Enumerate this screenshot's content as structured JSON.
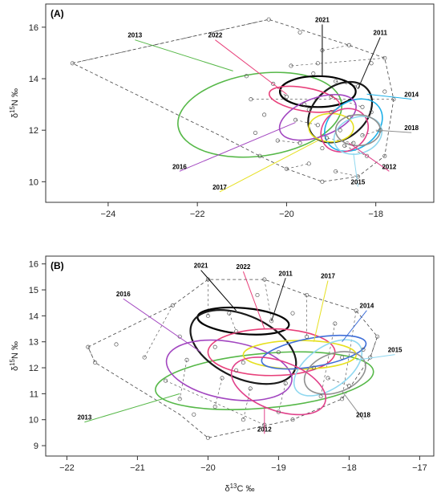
{
  "colors": {
    "2011": "#5a5a5a",
    "2012": "#e0408a",
    "2013": "#56b848",
    "2014": "#1eb0e8",
    "2015": "#90d8f0",
    "2016": "#a246c0",
    "2017": "#e6e020",
    "2018": "#909090",
    "2021": "#000000",
    "2022": "#e8407a",
    "2021b": "#1a1a1a",
    "2014b": "#3f6fd8",
    "hull": "#444444"
  },
  "chart_data": [
    {
      "type": "scatter",
      "panel_label": "(A)",
      "xlabel": "",
      "ylabel": "δ15N ‰",
      "xlim": [
        -25.4,
        -16.7
      ],
      "ylim": [
        9.2,
        16.9
      ],
      "xticks": [
        -24,
        -22,
        -20,
        -18
      ],
      "yticks": [
        10,
        12,
        14,
        16
      ],
      "ellipses": [
        {
          "year": "2013",
          "cx": -20.6,
          "cy": 12.6,
          "rx": 1.85,
          "ry": 1.6,
          "angle": 8,
          "color": "2013"
        },
        {
          "year": "2021",
          "cx": -19.3,
          "cy": 13.5,
          "rx": 0.85,
          "ry": 0.6,
          "angle": 0,
          "color": "2021"
        },
        {
          "year": "2011",
          "cx": -18.8,
          "cy": 12.7,
          "rx": 0.8,
          "ry": 1.0,
          "angle": 40,
          "color": "2021b"
        },
        {
          "year": "2022",
          "cx": -19.6,
          "cy": 13.2,
          "rx": 0.8,
          "ry": 0.45,
          "angle": -10,
          "color": "2022"
        },
        {
          "year": "2014",
          "cx": -18.5,
          "cy": 12.2,
          "rx": 0.7,
          "ry": 0.9,
          "angle": 35,
          "color": "2014"
        },
        {
          "year": "2016",
          "cx": -19.3,
          "cy": 12.5,
          "rx": 0.9,
          "ry": 0.75,
          "angle": 20,
          "color": "2016"
        },
        {
          "year": "2017",
          "cx": -19.0,
          "cy": 12.1,
          "rx": 0.5,
          "ry": 0.55,
          "angle": 0,
          "color": "2017"
        },
        {
          "year": "2012",
          "cx": -18.7,
          "cy": 12.0,
          "rx": 0.55,
          "ry": 0.8,
          "angle": 30,
          "color": "2012"
        },
        {
          "year": "2015",
          "cx": -18.4,
          "cy": 11.8,
          "rx": 0.55,
          "ry": 0.7,
          "angle": 20,
          "color": "2015"
        },
        {
          "year": "2018",
          "cx": -18.4,
          "cy": 12.0,
          "rx": 0.5,
          "ry": 0.6,
          "angle": 0,
          "color": "2018"
        }
      ],
      "hull_points": [
        [
          -24.8,
          14.6
        ],
        [
          -20.4,
          16.3
        ],
        [
          -18.6,
          15.3
        ],
        [
          -17.8,
          14.8
        ],
        [
          -17.6,
          13.2
        ],
        [
          -17.8,
          11.0
        ],
        [
          -18.4,
          10.2
        ],
        [
          -19.2,
          10.0
        ],
        [
          -20.0,
          10.5
        ],
        [
          -20.6,
          11.0
        ],
        [
          -21.5,
          11.8
        ],
        [
          -24.8,
          14.6
        ]
      ],
      "points": [
        [
          -24.8,
          14.6
        ],
        [
          -20.4,
          16.3
        ],
        [
          -19.7,
          15.8
        ],
        [
          -19.2,
          15.1
        ],
        [
          -18.6,
          15.3
        ],
        [
          -18.1,
          14.6
        ],
        [
          -17.8,
          14.8
        ],
        [
          -19.9,
          14.5
        ],
        [
          -19.4,
          14.2
        ],
        [
          -18.9,
          13.9
        ],
        [
          -18.4,
          13.7
        ],
        [
          -17.8,
          13.5
        ],
        [
          -20.3,
          13.8
        ],
        [
          -20.0,
          13.3
        ],
        [
          -19.6,
          13.0
        ],
        [
          -19.0,
          12.7
        ],
        [
          -18.6,
          12.5
        ],
        [
          -18.1,
          12.7
        ],
        [
          -17.6,
          13.2
        ],
        [
          -20.8,
          13.2
        ],
        [
          -20.5,
          12.6
        ],
        [
          -19.8,
          12.4
        ],
        [
          -19.3,
          12.2
        ],
        [
          -18.8,
          12.0
        ],
        [
          -18.3,
          11.8
        ],
        [
          -17.9,
          12.0
        ],
        [
          -20.7,
          11.9
        ],
        [
          -20.2,
          11.6
        ],
        [
          -19.7,
          11.5
        ],
        [
          -19.2,
          11.3
        ],
        [
          -18.7,
          11.4
        ],
        [
          -18.2,
          11.0
        ],
        [
          -17.8,
          11.0
        ],
        [
          -20.0,
          10.5
        ],
        [
          -19.5,
          10.7
        ],
        [
          -19.2,
          10.0
        ],
        [
          -18.9,
          10.4
        ],
        [
          -18.4,
          10.2
        ],
        [
          -20.6,
          11.0
        ],
        [
          -19.0,
          13.3
        ],
        [
          -18.3,
          12.9
        ],
        [
          -19.5,
          12.8
        ],
        [
          -18.5,
          11.5
        ],
        [
          -19.1,
          11.7
        ],
        [
          -20.9,
          14.1
        ],
        [
          -19.3,
          14.6
        ]
      ],
      "annotations": [
        {
          "text": "2013",
          "tx": -23.4,
          "ty": 15.6,
          "lx": -21.2,
          "ly": 14.3,
          "color": "2013"
        },
        {
          "text": "2022",
          "tx": -21.6,
          "ty": 15.6,
          "lx": -20.0,
          "ly": 13.4,
          "color": "2022"
        },
        {
          "text": "2021",
          "tx": -19.2,
          "ty": 16.2,
          "lx": -19.2,
          "ly": 14.1,
          "color": "2021"
        },
        {
          "text": "2011",
          "tx": -17.9,
          "ty": 15.7,
          "lx": -18.4,
          "ly": 13.6,
          "color": "2021b"
        },
        {
          "text": "2014",
          "tx": -17.2,
          "ty": 13.3,
          "lx": -18.2,
          "ly": 13.4,
          "color": "2014"
        },
        {
          "text": "2018",
          "tx": -17.2,
          "ty": 12.0,
          "lx": -18.0,
          "ly": 12.0,
          "color": "2018"
        },
        {
          "text": "2012",
          "tx": -17.7,
          "ty": 10.5,
          "lx": -18.6,
          "ly": 11.5,
          "color": "2012"
        },
        {
          "text": "2015",
          "tx": -18.4,
          "ty": 9.9,
          "lx": -18.5,
          "ly": 11.1,
          "color": "2015"
        },
        {
          "text": "2016",
          "tx": -22.4,
          "ty": 10.5,
          "lx": -19.8,
          "ly": 12.3,
          "color": "2016"
        },
        {
          "text": "2017",
          "tx": -21.5,
          "ty": 9.7,
          "lx": -19.3,
          "ly": 11.6,
          "color": "2017"
        }
      ]
    },
    {
      "type": "scatter",
      "panel_label": "(B)",
      "xlabel": "δ13C ‰",
      "ylabel": "δ15N ‰",
      "xlim": [
        -22.3,
        -16.8
      ],
      "ylim": [
        8.6,
        16.3
      ],
      "xticks": [
        -22,
        -21,
        -20,
        -19,
        -18,
        -17
      ],
      "yticks": [
        9,
        10,
        11,
        12,
        13,
        14,
        15,
        16
      ],
      "ellipses": [
        {
          "year": "2013",
          "cx": -19.2,
          "cy": 11.5,
          "rx": 1.55,
          "ry": 1.05,
          "angle": 5,
          "color": "2013"
        },
        {
          "year": "2021",
          "cx": -19.5,
          "cy": 13.8,
          "rx": 0.65,
          "ry": 0.5,
          "angle": -5,
          "color": "2021"
        },
        {
          "year": "2011",
          "cx": -19.5,
          "cy": 12.8,
          "rx": 0.8,
          "ry": 1.2,
          "angle": -25,
          "color": "2021b"
        },
        {
          "year": "2022",
          "cx": -19.1,
          "cy": 12.6,
          "rx": 0.9,
          "ry": 0.9,
          "angle": 0,
          "color": "2022"
        },
        {
          "year": "2016",
          "cx": -19.7,
          "cy": 11.9,
          "rx": 0.9,
          "ry": 1.1,
          "angle": -10,
          "color": "2016"
        },
        {
          "year": "2017",
          "cx": -18.7,
          "cy": 12.5,
          "rx": 0.8,
          "ry": 0.55,
          "angle": 0,
          "color": "2017"
        },
        {
          "year": "2014",
          "cx": -18.5,
          "cy": 12.6,
          "rx": 0.75,
          "ry": 0.55,
          "angle": 10,
          "color": "2014b"
        },
        {
          "year": "2015",
          "cx": -18.3,
          "cy": 12.0,
          "rx": 0.55,
          "ry": 0.8,
          "angle": 35,
          "color": "2015"
        },
        {
          "year": "2018",
          "cx": -18.2,
          "cy": 11.8,
          "rx": 0.45,
          "ry": 0.75,
          "angle": 20,
          "color": "2018"
        },
        {
          "year": "2012",
          "cx": -19.0,
          "cy": 11.3,
          "rx": 0.7,
          "ry": 0.95,
          "angle": -20,
          "color": "2012"
        }
      ],
      "hull_points": [
        [
          -21.7,
          12.8
        ],
        [
          -20.5,
          14.4
        ],
        [
          -20.0,
          15.4
        ],
        [
          -19.2,
          15.4
        ],
        [
          -18.6,
          14.8
        ],
        [
          -17.9,
          14.2
        ],
        [
          -17.6,
          13.2
        ],
        [
          -17.7,
          12.4
        ],
        [
          -18.1,
          10.8
        ],
        [
          -18.8,
          10.0
        ],
        [
          -20.0,
          9.3
        ],
        [
          -20.4,
          10.2
        ],
        [
          -21.6,
          12.2
        ],
        [
          -21.7,
          12.8
        ]
      ],
      "points": [
        [
          -21.7,
          12.8
        ],
        [
          -21.6,
          12.2
        ],
        [
          -21.3,
          12.9
        ],
        [
          -20.9,
          12.4
        ],
        [
          -20.5,
          14.4
        ],
        [
          -20.4,
          13.2
        ],
        [
          -20.3,
          12.3
        ],
        [
          -20.4,
          10.8
        ],
        [
          -20.2,
          10.2
        ],
        [
          -20.0,
          15.4
        ],
        [
          -20.0,
          14.0
        ],
        [
          -19.9,
          12.8
        ],
        [
          -19.8,
          11.6
        ],
        [
          -19.9,
          10.5
        ],
        [
          -20.0,
          9.3
        ],
        [
          -19.7,
          14.1
        ],
        [
          -19.6,
          13.4
        ],
        [
          -19.5,
          12.2
        ],
        [
          -19.4,
          11.2
        ],
        [
          -19.5,
          10.0
        ],
        [
          -19.3,
          14.8
        ],
        [
          -19.2,
          15.4
        ],
        [
          -19.1,
          13.8
        ],
        [
          -19.0,
          12.6
        ],
        [
          -18.9,
          11.4
        ],
        [
          -19.0,
          10.3
        ],
        [
          -18.8,
          14.1
        ],
        [
          -18.6,
          14.8
        ],
        [
          -18.6,
          13.2
        ],
        [
          -18.5,
          12.0
        ],
        [
          -18.4,
          10.9
        ],
        [
          -18.2,
          13.7
        ],
        [
          -18.1,
          12.4
        ],
        [
          -18.1,
          10.8
        ],
        [
          -17.9,
          14.2
        ],
        [
          -17.8,
          12.7
        ],
        [
          -17.6,
          13.2
        ],
        [
          -17.7,
          12.4
        ],
        [
          -18.8,
          10.0
        ],
        [
          -19.2,
          9.8
        ],
        [
          -20.6,
          11.5
        ],
        [
          -19.6,
          11.9
        ],
        [
          -18.3,
          11.6
        ],
        [
          -18.0,
          11.3
        ]
      ],
      "annotations": [
        {
          "text": "2021",
          "tx": -20.1,
          "ty": 15.85,
          "lx": -19.6,
          "ly": 14.2,
          "color": "2021"
        },
        {
          "text": "2022",
          "tx": -19.5,
          "ty": 15.8,
          "lx": -19.2,
          "ly": 13.5,
          "color": "2022"
        },
        {
          "text": "2011",
          "tx": -18.9,
          "ty": 15.55,
          "lx": -19.1,
          "ly": 13.8,
          "color": "2021b"
        },
        {
          "text": "2017",
          "tx": -18.3,
          "ty": 15.45,
          "lx": -18.5,
          "ly": 13.0,
          "color": "2017"
        },
        {
          "text": "2016",
          "tx": -21.2,
          "ty": 14.75,
          "lx": -20.1,
          "ly": 12.6,
          "color": "2016"
        },
        {
          "text": "2014",
          "tx": -17.75,
          "ty": 14.3,
          "lx": -18.1,
          "ly": 13.0,
          "color": "2014b"
        },
        {
          "text": "2015",
          "tx": -17.35,
          "ty": 12.6,
          "lx": -17.9,
          "ly": 12.3,
          "color": "2015"
        },
        {
          "text": "2013",
          "tx": -21.75,
          "ty": 10.0,
          "lx": -20.4,
          "ly": 11.0,
          "color": "2013"
        },
        {
          "text": "2012",
          "tx": -19.2,
          "ty": 9.55,
          "lx": -19.2,
          "ly": 10.5,
          "color": "2012"
        },
        {
          "text": "2018",
          "tx": -17.8,
          "ty": 10.1,
          "lx": -18.1,
          "ly": 11.1,
          "color": "2018"
        }
      ]
    }
  ]
}
